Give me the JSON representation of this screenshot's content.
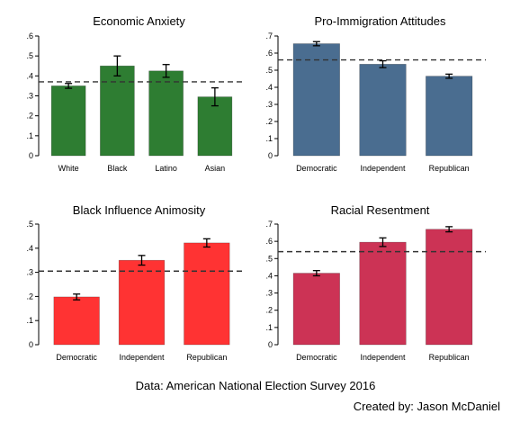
{
  "chart_data": [
    {
      "type": "bar",
      "title": "Economic Anxiety",
      "categories": [
        "White",
        "Black",
        "Latino",
        "Asian"
      ],
      "values": [
        0.35,
        0.45,
        0.425,
        0.295
      ],
      "errors": [
        0.012,
        0.05,
        0.032,
        0.045
      ],
      "reference_line": 0.37,
      "ylim": [
        0,
        0.6
      ],
      "yticks": [
        0,
        0.1,
        0.2,
        0.3,
        0.4,
        0.5,
        0.6
      ],
      "ytick_labels": [
        "0",
        ".1",
        ".2",
        ".3",
        ".4",
        ".5",
        ".6"
      ],
      "color": "#2e7d32"
    },
    {
      "type": "bar",
      "title": "Pro-Immigration Attitudes",
      "categories": [
        "Democratic",
        "Independent",
        "Republican"
      ],
      "values": [
        0.655,
        0.535,
        0.465
      ],
      "errors": [
        0.012,
        0.02,
        0.012
      ],
      "reference_line": 0.56,
      "ylim": [
        0,
        0.7
      ],
      "yticks": [
        0,
        0.1,
        0.2,
        0.3,
        0.4,
        0.5,
        0.6,
        0.7
      ],
      "ytick_labels": [
        "0",
        ".1",
        ".2",
        ".3",
        ".4",
        ".5",
        ".6",
        ".7"
      ],
      "color": "#4a6d90"
    },
    {
      "type": "bar",
      "title": "Black Influence Animosity",
      "categories": [
        "Democratic",
        "Independent",
        "Republican"
      ],
      "values": [
        0.198,
        0.35,
        0.422
      ],
      "errors": [
        0.012,
        0.02,
        0.017
      ],
      "reference_line": 0.305,
      "ylim": [
        0,
        0.5
      ],
      "yticks": [
        0,
        0.1,
        0.2,
        0.3,
        0.4,
        0.5
      ],
      "ytick_labels": [
        "0",
        ".1",
        ".2",
        ".3",
        ".4",
        ".5"
      ],
      "color": "#ff3333"
    },
    {
      "type": "bar",
      "title": "Racial Resentment",
      "categories": [
        "Democratic",
        "Independent",
        "Republican"
      ],
      "values": [
        0.415,
        0.595,
        0.67
      ],
      "errors": [
        0.015,
        0.025,
        0.015
      ],
      "reference_line": 0.54,
      "ylim": [
        0,
        0.7
      ],
      "yticks": [
        0,
        0.1,
        0.2,
        0.3,
        0.4,
        0.5,
        0.6,
        0.7
      ],
      "ytick_labels": [
        "0",
        ".1",
        ".2",
        ".3",
        ".4",
        ".5",
        ".6",
        ".7"
      ],
      "color": "#cc3355"
    }
  ],
  "footer": {
    "source": "Data: American National Election Survey 2016",
    "credit": "Created by: Jason McDaniel"
  }
}
